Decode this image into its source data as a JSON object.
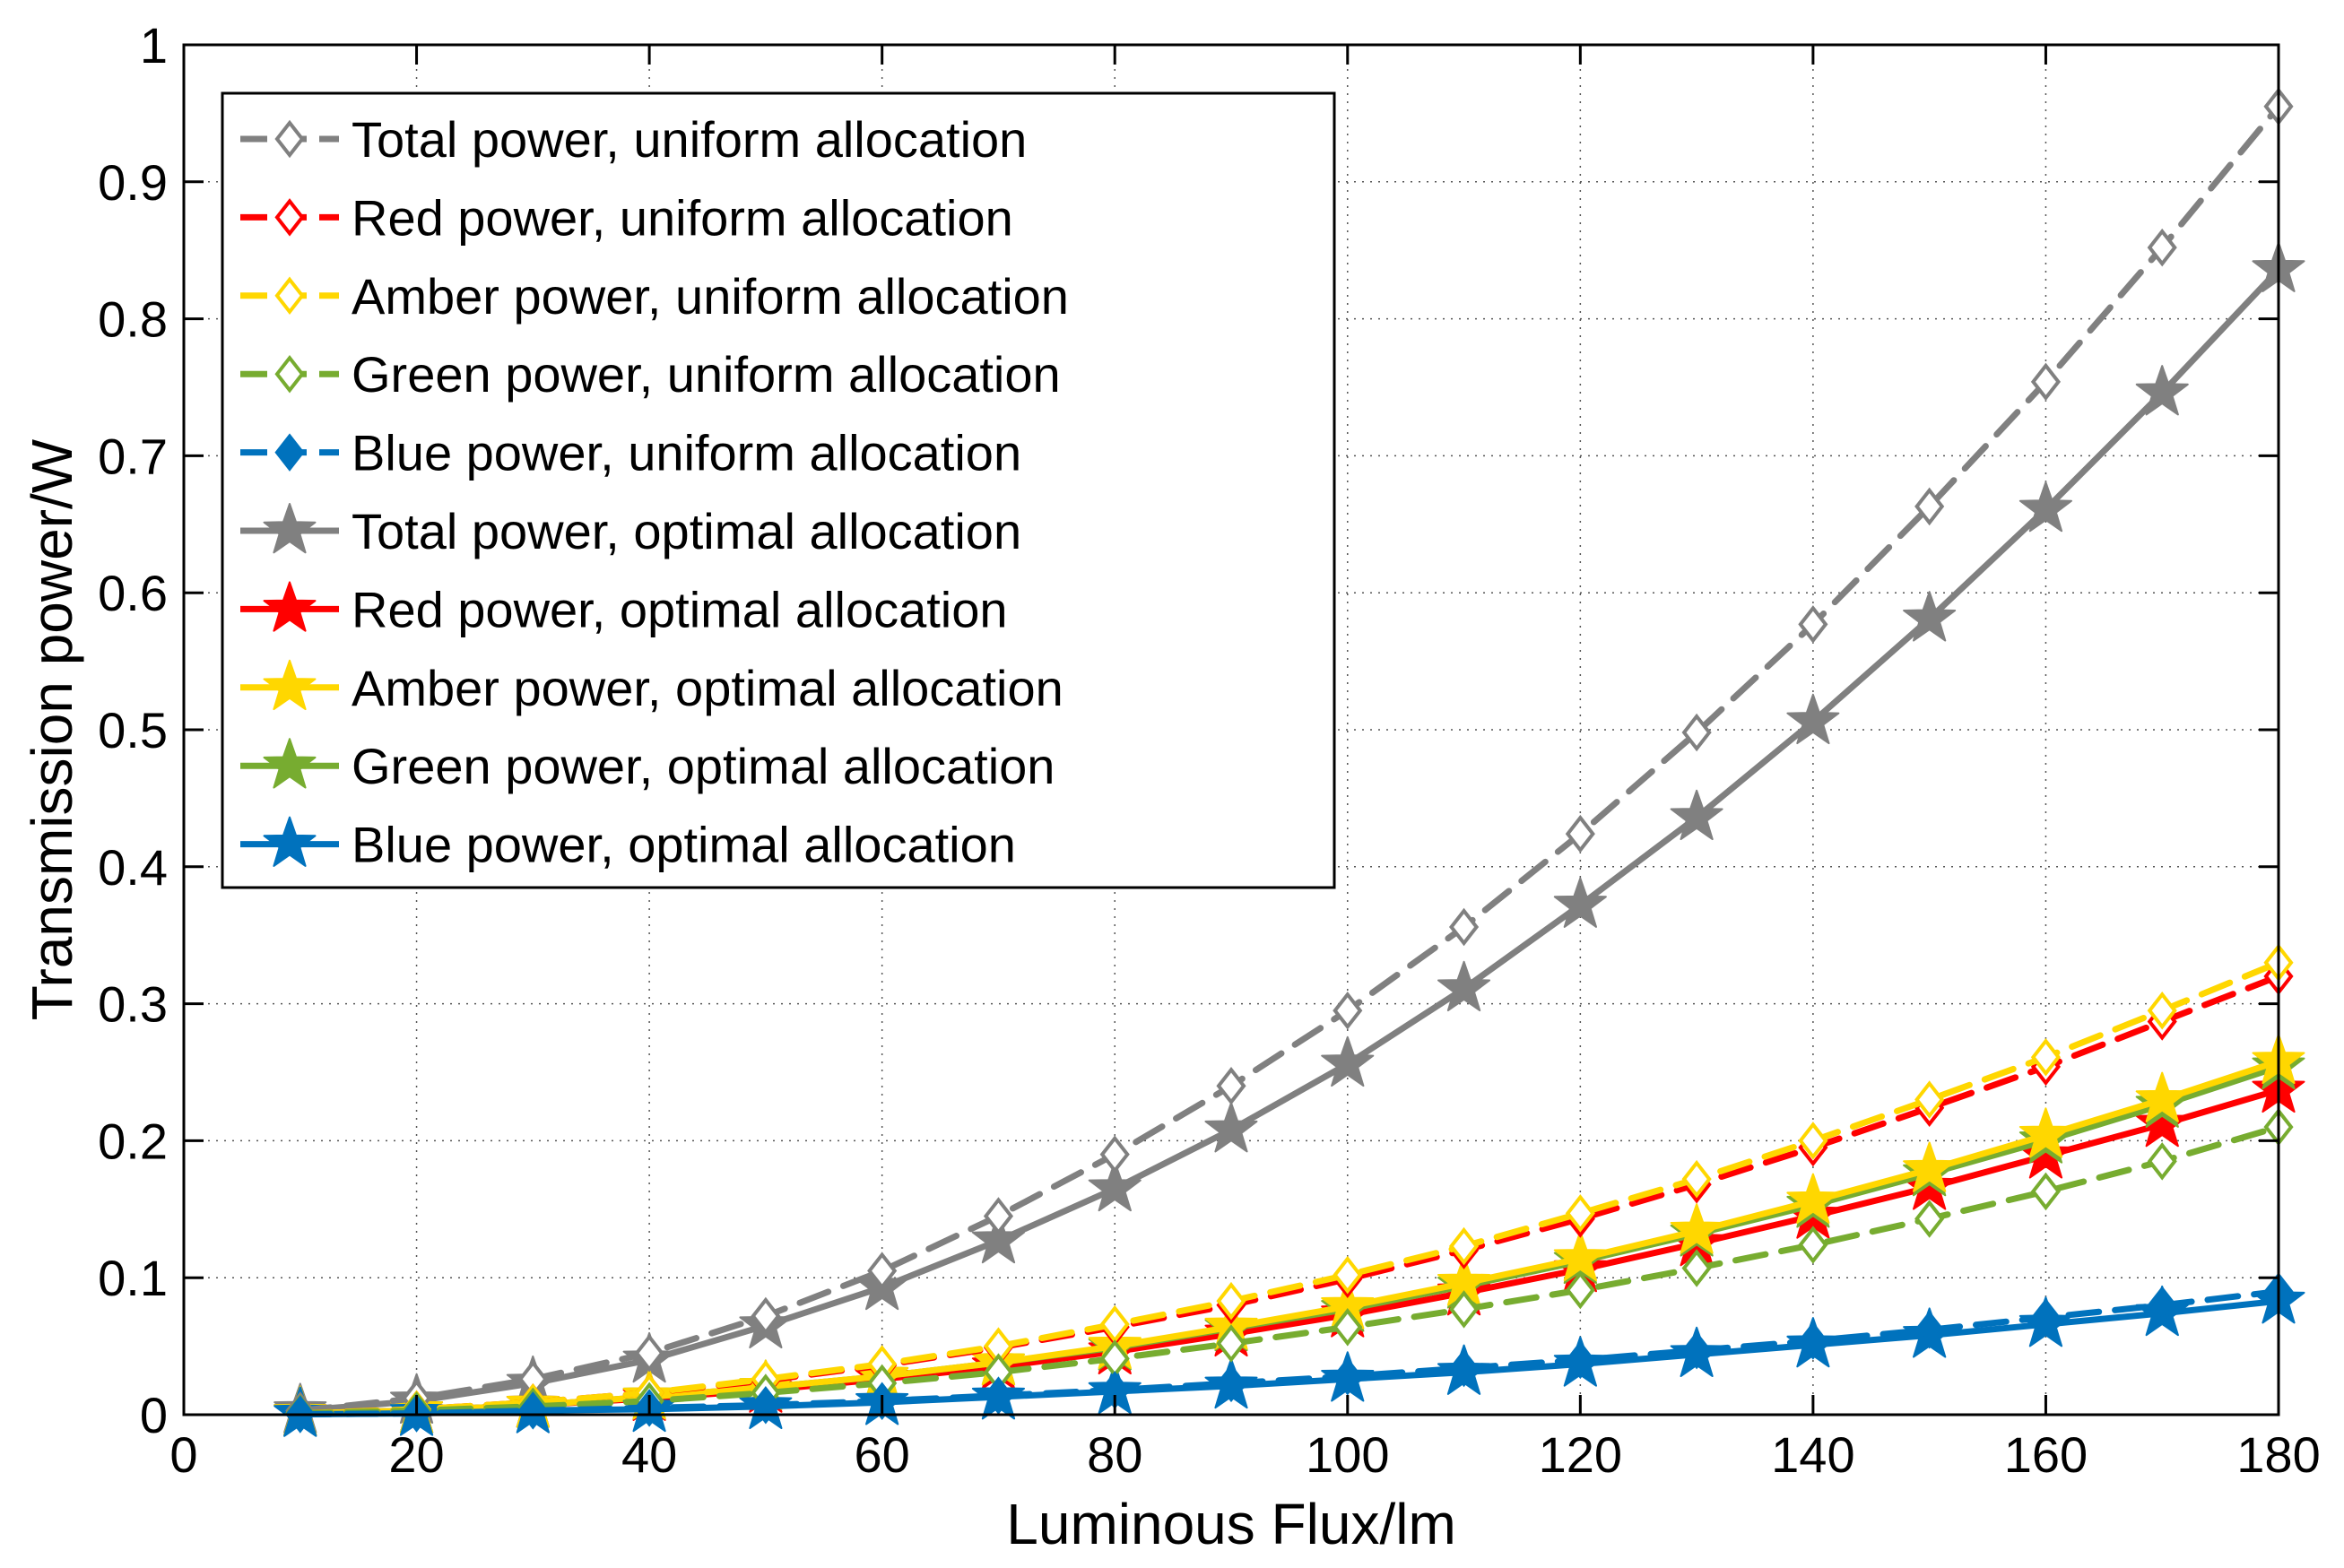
{
  "chart_data": {
    "type": "line",
    "title": "",
    "xlabel": "Luminous Flux/lm",
    "ylabel": "Transmission power/W",
    "xlim": [
      0,
      180
    ],
    "ylim": [
      0,
      1
    ],
    "xticks": [
      0,
      20,
      40,
      60,
      80,
      100,
      120,
      140,
      160,
      180
    ],
    "yticks": [
      0,
      0.1,
      0.2,
      0.3,
      0.4,
      0.5,
      0.6,
      0.7,
      0.8,
      0.9,
      1
    ],
    "xtick_labels": [
      "0",
      "20",
      "40",
      "60",
      "80",
      "100",
      "120",
      "140",
      "160",
      "180"
    ],
    "ytick_labels": [
      "0",
      "0.1",
      "0.2",
      "0.3",
      "0.4",
      "0.5",
      "0.6",
      "0.7",
      "0.8",
      "0.9",
      "1"
    ],
    "grid": true,
    "legend_position": "top-left",
    "x": [
      10,
      20,
      30,
      40,
      50,
      60,
      70,
      80,
      90,
      100,
      110,
      120,
      130,
      140,
      150,
      160,
      170,
      180
    ],
    "series": [
      {
        "name": "Total power, uniform allocation",
        "color": "#808080",
        "marker": "diamond-open",
        "dash": true,
        "values": [
          0.003,
          0.012,
          0.026,
          0.045,
          0.072,
          0.105,
          0.145,
          0.19,
          0.24,
          0.295,
          0.356,
          0.424,
          0.498,
          0.577,
          0.663,
          0.754,
          0.852,
          0.955
        ]
      },
      {
        "name": "Red power, uniform allocation",
        "color": "#ff0000",
        "marker": "diamond-open",
        "dash": true,
        "values": [
          0.001,
          0.004,
          0.009,
          0.016,
          0.025,
          0.036,
          0.049,
          0.064,
          0.08,
          0.099,
          0.12,
          0.143,
          0.168,
          0.195,
          0.224,
          0.254,
          0.287,
          0.32
        ]
      },
      {
        "name": "Amber power, uniform allocation",
        "color": "#ffd700",
        "marker": "diamond-open",
        "dash": true,
        "values": [
          0.001,
          0.004,
          0.009,
          0.016,
          0.026,
          0.037,
          0.05,
          0.066,
          0.083,
          0.102,
          0.123,
          0.147,
          0.172,
          0.2,
          0.23,
          0.261,
          0.295,
          0.33
        ]
      },
      {
        "name": "Green power, uniform allocation",
        "color": "#77ac30",
        "marker": "diamond-open",
        "dash": true,
        "values": [
          0.001,
          0.003,
          0.006,
          0.01,
          0.016,
          0.023,
          0.031,
          0.041,
          0.052,
          0.064,
          0.077,
          0.091,
          0.107,
          0.124,
          0.143,
          0.163,
          0.185,
          0.21
        ]
      },
      {
        "name": "Blue power, uniform allocation",
        "color": "#0072bd",
        "marker": "diamond-filled",
        "dash": true,
        "values": [
          0.0003,
          0.001,
          0.003,
          0.005,
          0.007,
          0.01,
          0.014,
          0.018,
          0.023,
          0.028,
          0.034,
          0.04,
          0.047,
          0.054,
          0.062,
          0.071,
          0.08,
          0.09
        ]
      },
      {
        "name": "Total power, optimal allocation",
        "color": "#808080",
        "marker": "star",
        "dash": false,
        "values": [
          0.003,
          0.01,
          0.023,
          0.04,
          0.065,
          0.093,
          0.127,
          0.165,
          0.208,
          0.256,
          0.311,
          0.372,
          0.436,
          0.506,
          0.581,
          0.661,
          0.746,
          0.836
        ]
      },
      {
        "name": "Red power, optimal allocation",
        "color": "#ff0000",
        "marker": "star",
        "dash": false,
        "values": [
          0.001,
          0.003,
          0.007,
          0.012,
          0.018,
          0.026,
          0.035,
          0.046,
          0.059,
          0.073,
          0.089,
          0.106,
          0.125,
          0.145,
          0.166,
          0.189,
          0.212,
          0.237
        ]
      },
      {
        "name": "Amber power, optimal allocation",
        "color": "#ffd700",
        "marker": "star",
        "dash": false,
        "values": [
          0.001,
          0.003,
          0.007,
          0.013,
          0.02,
          0.028,
          0.038,
          0.05,
          0.064,
          0.079,
          0.096,
          0.114,
          0.134,
          0.156,
          0.179,
          0.204,
          0.23,
          0.258
        ]
      },
      {
        "name": "Green power, optimal allocation",
        "color": "#77ac30",
        "marker": "star",
        "dash": false,
        "values": [
          0.001,
          0.003,
          0.007,
          0.013,
          0.02,
          0.028,
          0.038,
          0.049,
          0.063,
          0.077,
          0.094,
          0.112,
          0.132,
          0.153,
          0.176,
          0.2,
          0.226,
          0.254
        ]
      },
      {
        "name": "Blue power, optimal allocation",
        "color": "#0072bd",
        "marker": "star",
        "dash": false,
        "values": [
          0.0003,
          0.001,
          0.003,
          0.004,
          0.006,
          0.009,
          0.013,
          0.017,
          0.021,
          0.026,
          0.031,
          0.037,
          0.044,
          0.051,
          0.058,
          0.066,
          0.074,
          0.083
        ]
      }
    ]
  }
}
